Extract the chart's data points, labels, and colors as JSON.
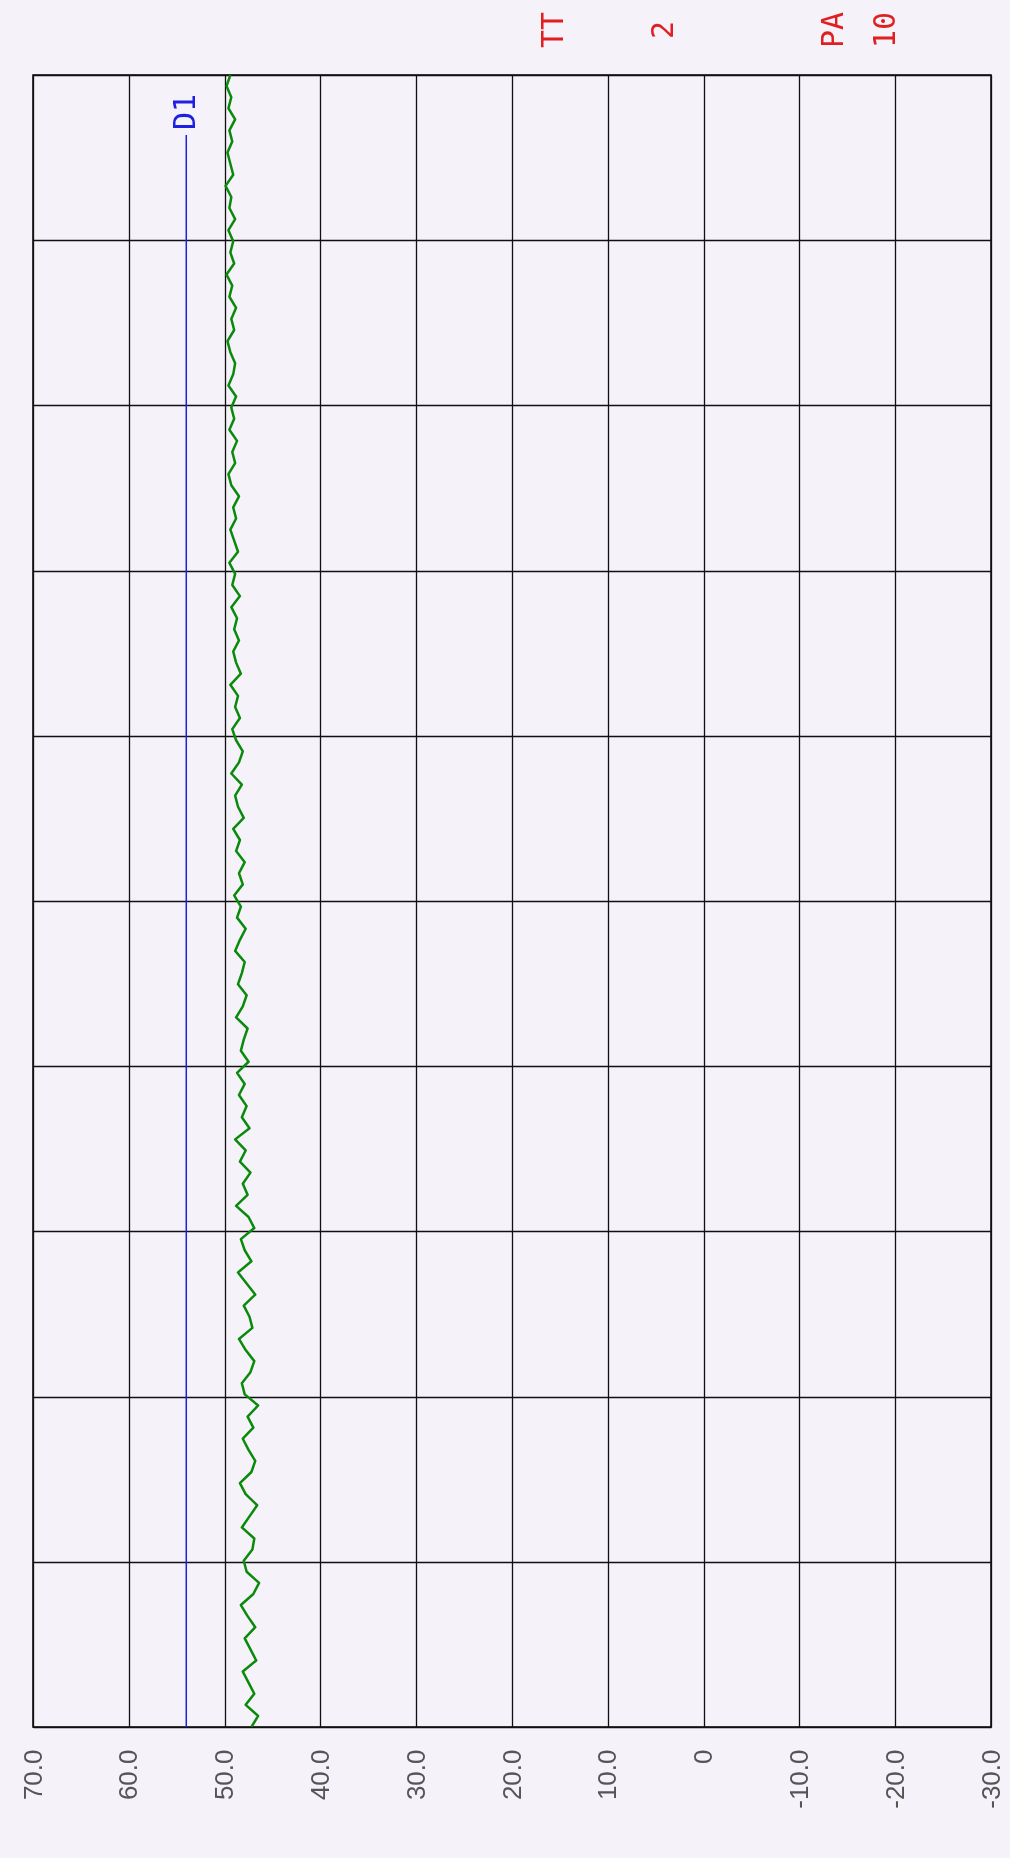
{
  "chart_data": {
    "type": "line",
    "orientation": "horizontal",
    "categories": [
      null,
      null,
      null,
      null,
      null,
      null,
      null,
      null,
      null,
      null,
      null,
      null,
      null,
      null,
      null,
      null,
      null,
      null,
      null,
      null,
      null,
      null,
      null,
      null,
      null,
      null,
      null,
      null,
      null,
      null,
      null,
      null,
      null,
      null,
      null,
      null,
      null,
      null,
      null,
      null,
      null,
      null,
      null,
      null,
      null,
      null,
      null,
      null,
      null,
      null,
      null,
      null,
      null,
      null,
      null,
      null,
      null,
      null,
      null,
      null,
      null,
      null,
      null,
      null,
      null,
      null,
      null,
      null,
      null,
      null,
      null,
      null,
      null,
      null,
      null,
      null,
      null,
      null,
      null,
      null,
      null,
      null,
      null,
      null,
      null,
      null,
      null,
      null,
      null,
      null,
      null,
      null,
      null,
      null,
      null,
      null,
      null,
      null,
      null,
      null,
      null,
      null,
      null,
      null,
      null,
      null,
      null,
      null,
      null,
      null,
      null,
      null,
      null,
      null,
      null,
      null,
      null,
      null,
      null,
      null,
      null,
      null,
      null,
      null,
      null,
      null,
      null,
      null,
      null,
      null,
      null,
      null,
      null,
      null,
      null,
      null,
      null,
      null,
      null,
      null,
      null,
      null,
      null,
      null,
      null,
      null,
      null,
      null,
      null,
      null
    ],
    "series": [
      {
        "color": "#0a8a0a",
        "values": [
          49.4,
          49.8,
          49.3,
          49.6,
          48.9,
          49.5,
          49.2,
          49.7,
          49.4,
          49.1,
          49.9,
          49.3,
          49.5,
          48.9,
          49.6,
          49.1,
          49.4,
          49.0,
          49.8,
          49.2,
          49.5,
          48.8,
          49.3,
          49.0,
          49.7,
          49.4,
          48.9,
          49.1,
          49.6,
          48.8,
          49.3,
          49.0,
          49.5,
          48.7,
          49.2,
          48.9,
          49.6,
          49.3,
          48.5,
          49.1,
          48.8,
          49.4,
          49.0,
          48.6,
          49.5,
          48.9,
          49.2,
          48.4,
          49.3,
          48.7,
          49.0,
          48.5,
          49.1,
          48.8,
          48.3,
          49.4,
          48.6,
          48.9,
          48.4,
          49.2,
          48.8,
          48.1,
          48.5,
          49.3,
          48.2,
          48.9,
          48.6,
          48.0,
          49.1,
          48.4,
          48.8,
          47.9,
          48.5,
          48.1,
          49.0,
          48.3,
          48.7,
          47.8,
          48.4,
          48.9,
          47.9,
          48.2,
          48.6,
          47.7,
          48.1,
          48.8,
          47.6,
          48.0,
          48.3,
          47.5,
          48.7,
          47.9,
          48.5,
          47.7,
          48.2,
          47.4,
          48.9,
          47.8,
          48.4,
          47.3,
          48.1,
          47.6,
          48.8,
          47.5,
          46.9,
          48.3,
          47.9,
          47.2,
          48.6,
          47.7,
          46.8,
          48.0,
          47.4,
          47.1,
          48.5,
          47.8,
          46.9,
          47.3,
          48.2,
          47.9,
          46.5,
          47.6,
          47.0,
          48.1,
          47.5,
          46.8,
          47.2,
          48.4,
          47.8,
          46.6,
          47.4,
          48.2,
          46.9,
          47.1,
          48.0,
          47.7,
          46.4,
          47.0,
          48.3,
          47.6,
          46.8,
          47.9,
          47.3,
          46.7,
          48.1,
          47.5,
          46.9,
          47.8,
          46.5,
          47.2
        ]
      }
    ],
    "xlim": [
      70,
      -30
    ],
    "xticks": [
      {
        "value": 70,
        "label": "70.0"
      },
      {
        "value": 60,
        "label": "60.0"
      },
      {
        "value": 50,
        "label": "50.0"
      },
      {
        "value": 40,
        "label": "40.0"
      },
      {
        "value": 30,
        "label": "30.0"
      },
      {
        "value": 20,
        "label": "20.0"
      },
      {
        "value": 10,
        "label": "10.0"
      },
      0,
      {
        "value": -10,
        "label": "-10.0"
      },
      {
        "value": -20,
        "label": "-20.0"
      },
      {
        "value": -30,
        "label": "-30.0"
      }
    ],
    "grid": true,
    "tick_labels": "x",
    "ref_lines": [
      {
        "axis": "x",
        "value": 54,
        "label": "D1",
        "color": "#2020e0"
      }
    ],
    "annotations": [
      "TT",
      "2",
      "PA",
      "10"
    ]
  }
}
